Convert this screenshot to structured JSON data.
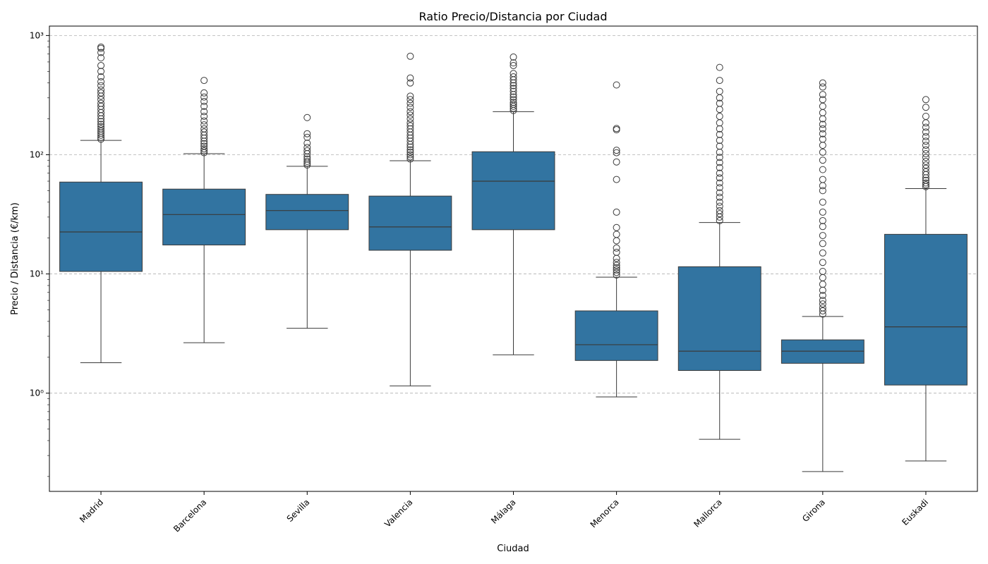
{
  "chart_data": {
    "type": "box",
    "title": "Ratio Precio/Distancia por Ciudad",
    "xlabel": "Ciudad",
    "ylabel": "Precio / Distancia (€/km)",
    "yscale": "log",
    "ylim": [
      0.15,
      1200
    ],
    "yticks": [
      {
        "value": 1,
        "label": "10⁰"
      },
      {
        "value": 10,
        "label": "10¹"
      },
      {
        "value": 100,
        "label": "10²"
      },
      {
        "value": 1000,
        "label": "10³"
      }
    ],
    "grid": "y-dashed",
    "box_color": "#3274a1",
    "categories": [
      "Madrid",
      "Barcelona",
      "Sevilla",
      "Valencia",
      "Málaga",
      "Menorca",
      "Mallorca",
      "Girona",
      "Euskadi"
    ],
    "boxes": [
      {
        "name": "Madrid",
        "whislo": 1.8,
        "q1": 10.5,
        "med": 22.5,
        "q3": 59,
        "whishi": 132,
        "fliers": [
          135,
          140,
          146,
          152,
          158,
          165,
          172,
          180,
          190,
          200,
          212,
          225,
          240,
          255,
          270,
          290,
          310,
          330,
          350,
          380,
          410,
          450,
          500,
          560,
          650,
          720,
          780,
          800
        ]
      },
      {
        "name": "Barcelona",
        "whislo": 2.65,
        "q1": 17.5,
        "med": 31.5,
        "q3": 51.5,
        "whishi": 102,
        "fliers": [
          104,
          108,
          112,
          118,
          124,
          130,
          138,
          146,
          155,
          165,
          178,
          192,
          210,
          230,
          255,
          280,
          305,
          330,
          420
        ]
      },
      {
        "name": "Sevilla",
        "whislo": 3.5,
        "q1": 23.5,
        "med": 34,
        "q3": 46.5,
        "whishi": 80,
        "fliers": [
          82,
          85,
          88,
          92,
          96,
          102,
          108,
          115,
          125,
          140,
          150,
          205
        ]
      },
      {
        "name": "Valencia",
        "whislo": 1.15,
        "q1": 15.8,
        "med": 24.8,
        "q3": 45,
        "whishi": 89,
        "fliers": [
          92,
          96,
          100,
          105,
          110,
          116,
          122,
          130,
          138,
          146,
          155,
          165,
          175,
          185,
          200,
          215,
          230,
          250,
          270,
          290,
          310,
          400,
          440,
          670
        ]
      },
      {
        "name": "Málaga",
        "whislo": 2.1,
        "q1": 23.5,
        "med": 60,
        "q3": 106,
        "whishi": 230,
        "fliers": [
          235,
          245,
          255,
          265,
          275,
          290,
          305,
          320,
          340,
          360,
          380,
          400,
          425,
          450,
          480,
          560,
          590,
          660
        ]
      },
      {
        "name": "Menorca",
        "whislo": 0.93,
        "q1": 1.88,
        "med": 2.55,
        "q3": 4.9,
        "whishi": 9.4,
        "fliers": [
          9.8,
          10.3,
          10.8,
          11.3,
          11.8,
          12.5,
          13.5,
          15.2,
          16.5,
          19,
          21.5,
          24.5,
          33,
          62,
          87,
          104,
          109,
          162,
          166,
          385
        ]
      },
      {
        "name": "Mallorca",
        "whislo": 0.41,
        "q1": 1.55,
        "med": 2.25,
        "q3": 11.5,
        "whishi": 27,
        "fliers": [
          28,
          30,
          32,
          34,
          37,
          40,
          44,
          48,
          53,
          58,
          64,
          70,
          78,
          86,
          95,
          105,
          118,
          132,
          148,
          165,
          185,
          210,
          240,
          270,
          300,
          340,
          420,
          540
        ]
      },
      {
        "name": "Girona",
        "whislo": 0.22,
        "q1": 1.78,
        "med": 2.25,
        "q3": 2.8,
        "whishi": 4.4,
        "fliers": [
          4.6,
          4.9,
          5.2,
          5.6,
          6.0,
          6.6,
          7.3,
          8.2,
          9.3,
          10.5,
          12.5,
          15,
          18,
          21,
          25,
          28,
          33,
          40,
          50,
          55,
          62,
          75,
          90,
          105,
          120,
          135,
          150,
          165,
          180,
          200,
          225,
          255,
          290,
          320,
          370,
          400
        ]
      },
      {
        "name": "Euskadi",
        "whislo": 0.27,
        "q1": 1.17,
        "med": 3.6,
        "q3": 21.5,
        "whishi": 52,
        "fliers": [
          54,
          56,
          58,
          61,
          64,
          68,
          72,
          77,
          82,
          88,
          95,
          102,
          110,
          120,
          130,
          142,
          155,
          170,
          185,
          210,
          250,
          290
        ]
      }
    ]
  }
}
